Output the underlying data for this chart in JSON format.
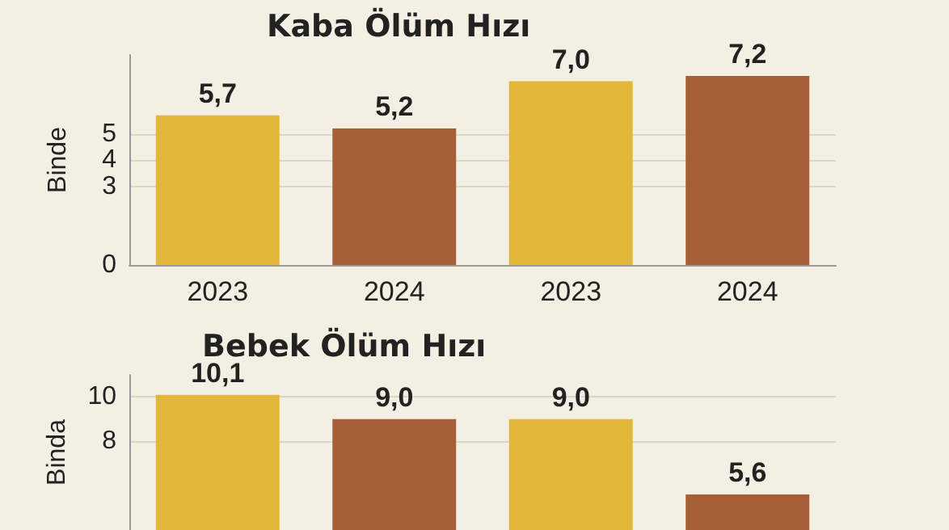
{
  "chart_data": [
    {
      "type": "bar",
      "title": "Kaba Ölüm Hızı",
      "ylabel": "Binde",
      "categories": [
        "2023",
        "2024",
        "2023",
        "2024"
      ],
      "values": [
        5.7,
        5.2,
        7.0,
        7.2
      ],
      "colors": [
        "#e3b73a",
        "#a65e36",
        "#e3b73a",
        "#a65e36"
      ],
      "value_labels": [
        "5,7",
        "5,2",
        "7,0",
        "7,2"
      ],
      "ylim": [
        0,
        8
      ],
      "yticks": [
        0,
        3,
        4,
        5
      ],
      "grid": "y"
    },
    {
      "type": "bar",
      "title": "Bebek Ölüm Hızı",
      "ylabel": "Binda",
      "categories": [
        null,
        null,
        null,
        null
      ],
      "values": [
        10.1,
        9.0,
        9.0,
        5.6
      ],
      "colors": [
        "#e3b73a",
        "#a65e36",
        "#e3b73a",
        "#a65e36"
      ],
      "value_labels": [
        "10,1",
        "9,0",
        "9,0",
        "5,6"
      ],
      "ylim": [
        4,
        11
      ],
      "yticks": [
        8,
        10
      ],
      "grid": "y",
      "tick_labels": "y"
    }
  ]
}
